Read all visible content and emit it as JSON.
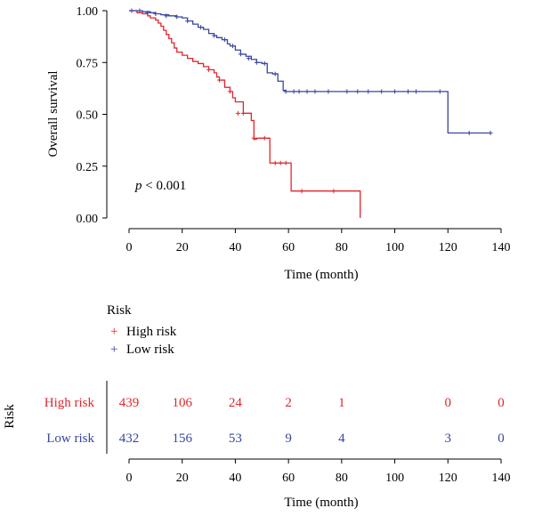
{
  "chart_data": [
    {
      "type": "line",
      "subtype": "kaplan-meier",
      "xlabel": "Time (month)",
      "ylabel": "Overall survival",
      "xlim": [
        0,
        140
      ],
      "ylim": [
        0,
        1
      ],
      "x_ticks": [
        "0",
        "20",
        "40",
        "60",
        "80",
        "100",
        "120",
        "140"
      ],
      "y_ticks": [
        "0.00",
        "0.25",
        "0.50",
        "0.75",
        "1.00"
      ],
      "annotation": {
        "italic": "p",
        "rest": " < 0.001"
      },
      "grid": false,
      "series": [
        {
          "name": "High risk",
          "color": "#e0262d",
          "x": [
            0,
            3,
            5,
            7,
            8,
            10,
            11,
            12,
            13,
            14,
            15,
            16,
            17,
            18,
            20,
            22,
            24,
            26,
            28,
            30,
            32,
            33,
            34,
            36,
            38,
            39,
            40,
            43,
            45,
            46,
            47,
            48,
            50,
            52,
            53,
            54,
            58,
            60,
            61,
            87
          ],
          "y": [
            1.0,
            0.99,
            0.985,
            0.975,
            0.965,
            0.955,
            0.94,
            0.925,
            0.905,
            0.885,
            0.865,
            0.845,
            0.82,
            0.8,
            0.785,
            0.77,
            0.755,
            0.745,
            0.73,
            0.715,
            0.7,
            0.68,
            0.665,
            0.63,
            0.61,
            0.58,
            0.56,
            0.505,
            0.505,
            0.47,
            0.38,
            0.385,
            0.385,
            0.385,
            0.265,
            0.265,
            0.265,
            0.265,
            0.13,
            0.13
          ],
          "end": 0.0,
          "censor_x": [
            30,
            34,
            38,
            41,
            43,
            47,
            51,
            55,
            57,
            59,
            65,
            77
          ],
          "censor_y": [
            0.715,
            0.665,
            0.61,
            0.505,
            0.505,
            0.385,
            0.385,
            0.265,
            0.265,
            0.265,
            0.13,
            0.13
          ]
        },
        {
          "name": "Low risk",
          "color": "#3846a0",
          "x": [
            0,
            5,
            8,
            10,
            12,
            15,
            18,
            20,
            22,
            24,
            26,
            28,
            30,
            32,
            33,
            35,
            37,
            38,
            40,
            42,
            44,
            46,
            48,
            50,
            52,
            54,
            56,
            58,
            59,
            120
          ],
          "y": [
            1.0,
            0.995,
            0.99,
            0.985,
            0.98,
            0.975,
            0.97,
            0.965,
            0.95,
            0.935,
            0.92,
            0.91,
            0.89,
            0.88,
            0.87,
            0.86,
            0.84,
            0.83,
            0.81,
            0.79,
            0.78,
            0.765,
            0.75,
            0.745,
            0.7,
            0.695,
            0.66,
            0.615,
            0.61,
            0.41
          ],
          "end": 0.41,
          "censor_x": [
            1,
            4,
            7,
            10,
            14,
            18,
            22,
            27,
            32,
            36,
            39,
            42,
            45,
            48,
            51,
            55,
            59,
            62,
            64,
            67,
            70,
            75,
            82,
            86,
            90,
            95,
            100,
            105,
            108,
            117,
            128,
            136
          ],
          "censor_y": [
            1.0,
            1.0,
            0.99,
            0.985,
            0.975,
            0.97,
            0.95,
            0.92,
            0.88,
            0.86,
            0.83,
            0.79,
            0.77,
            0.75,
            0.745,
            0.695,
            0.61,
            0.61,
            0.61,
            0.61,
            0.61,
            0.61,
            0.61,
            0.61,
            0.61,
            0.61,
            0.61,
            0.61,
            0.61,
            0.61,
            0.41,
            0.41
          ]
        }
      ]
    },
    {
      "type": "table",
      "title": "Risk",
      "xlabel": "Time (month)",
      "xlim": [
        0,
        140
      ],
      "x_ticks": [
        "0",
        "20",
        "40",
        "60",
        "80",
        "100",
        "120",
        "140"
      ],
      "rows": [
        {
          "label": "High risk",
          "color": "#e0262d",
          "values": [
            "439",
            "106",
            "24",
            "2",
            "1",
            "0",
            "0"
          ]
        },
        {
          "label": "Low risk",
          "color": "#3846a0",
          "values": [
            "432",
            "156",
            "53",
            "9",
            "4",
            "3",
            "0"
          ]
        }
      ],
      "value_times": [
        0,
        20,
        40,
        60,
        80,
        120,
        140
      ]
    }
  ],
  "legend": {
    "title": "Risk",
    "marker": "+",
    "items": [
      {
        "label": "High risk",
        "color": "#e0262d"
      },
      {
        "label": "Low risk",
        "color": "#3846a0"
      }
    ]
  }
}
